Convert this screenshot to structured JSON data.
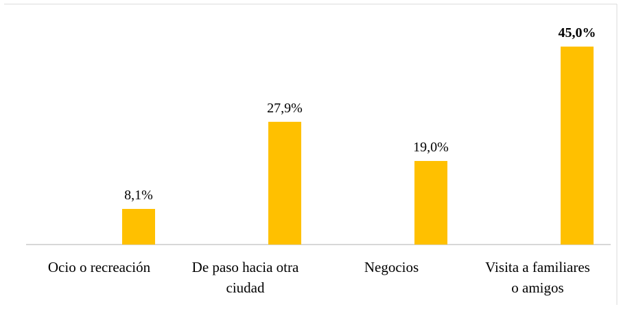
{
  "chart_data": {
    "type": "bar",
    "title": "",
    "xlabel": "",
    "ylabel": "",
    "ylim": [
      0,
      45
    ],
    "grid": false,
    "legend": "none",
    "categories": [
      [
        "Ocio o recreación"
      ],
      [
        "De paso hacia otra",
        "ciudad"
      ],
      [
        "Negocios"
      ],
      [
        "Visita a familiares",
        "o amigos"
      ]
    ],
    "values": [
      8.1,
      27.9,
      19.0,
      45.0
    ],
    "data_labels": [
      "8,1%",
      "27,9%",
      "19,0%",
      "45,0%"
    ],
    "bold_labels": [
      false,
      false,
      false,
      true
    ],
    "colors": {
      "bar": "#FFC000",
      "axis": "#BFBFBF",
      "frame": "#D9D9D9",
      "text": "#000000"
    }
  }
}
